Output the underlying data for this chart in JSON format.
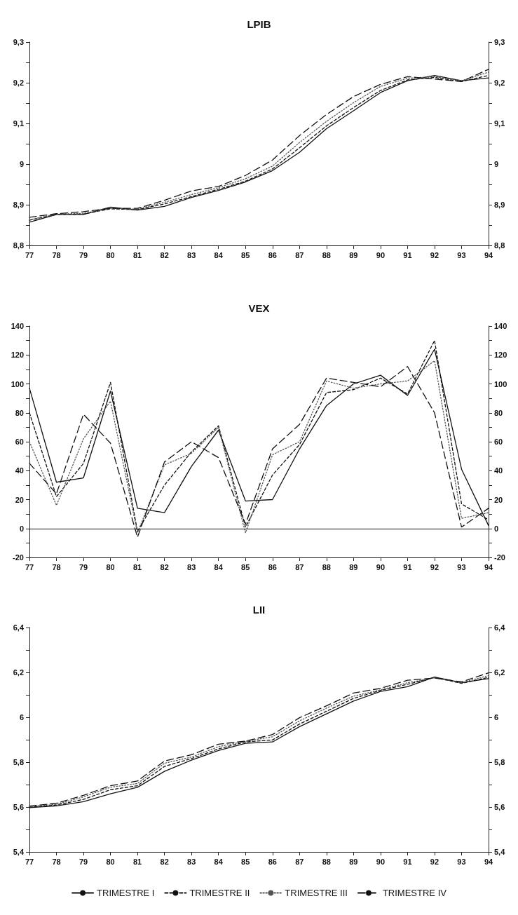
{
  "chart_data": [
    {
      "type": "line",
      "title": "LPIB",
      "categories": [
        "77",
        "78",
        "79",
        "80",
        "81",
        "82",
        "83",
        "84",
        "85",
        "86",
        "87",
        "88",
        "89",
        "90",
        "91",
        "92",
        "93",
        "94"
      ],
      "ylim": [
        8.8,
        9.3
      ],
      "yticks": [
        {
          "value": 8.8,
          "label": "8,8"
        },
        {
          "value": 8.85,
          "label": null
        },
        {
          "value": 8.9,
          "label": "8,9"
        },
        {
          "value": 8.95,
          "label": null
        },
        {
          "value": 9,
          "label": "9"
        },
        {
          "value": 9.05,
          "label": null
        },
        {
          "value": 9.1,
          "label": "9,1"
        },
        {
          "value": 9.15,
          "label": null
        },
        {
          "value": 9.2,
          "label": "9,2"
        },
        {
          "value": 9.25,
          "label": null
        },
        {
          "value": 9.3,
          "label": "9,3"
        }
      ],
      "y2lim": [
        8.8,
        9.3
      ],
      "y2ticks": [
        {
          "value": 8.8,
          "label": "8,8"
        },
        {
          "value": 8.85,
          "label": null
        },
        {
          "value": 8.9,
          "label": "8,9"
        },
        {
          "value": 8.95,
          "label": null
        },
        {
          "value": 9,
          "label": "9"
        },
        {
          "value": 9.05,
          "label": null
        },
        {
          "value": 9.1,
          "label": "9,1"
        },
        {
          "value": 9.15,
          "label": null
        },
        {
          "value": 9.2,
          "label": "9,2"
        },
        {
          "value": 9.25,
          "label": null
        },
        {
          "value": 9.3,
          "label": "9,3"
        }
      ],
      "grid": false,
      "marker": "none",
      "series": [
        {
          "color": "#111111",
          "line_style": "solid",
          "values": [
            8.857,
            8.876,
            8.876,
            8.894,
            8.887,
            8.896,
            8.918,
            8.935,
            8.956,
            8.984,
            9.029,
            9.087,
            9.131,
            9.176,
            9.205,
            9.218,
            9.205,
            9.212
          ]
        },
        {
          "color": "#111111",
          "line_style": "dashed",
          "values": [
            8.862,
            8.876,
            8.877,
            8.89,
            8.888,
            8.902,
            8.92,
            8.938,
            8.958,
            8.988,
            9.04,
            9.094,
            9.139,
            9.181,
            9.207,
            9.213,
            9.203,
            9.218
          ]
        },
        {
          "color": "#555555",
          "line_style": "dotted",
          "values": [
            8.863,
            8.877,
            8.879,
            8.891,
            8.889,
            8.906,
            8.925,
            8.942,
            8.964,
            8.995,
            9.053,
            9.105,
            9.151,
            9.191,
            9.211,
            9.215,
            9.205,
            9.226
          ]
        },
        {
          "color": "#111111",
          "line_style": "dashed",
          "values": [
            8.869,
            8.878,
            8.883,
            8.891,
            8.891,
            8.911,
            8.934,
            8.945,
            8.972,
            9.01,
            9.07,
            9.122,
            9.166,
            9.196,
            9.215,
            9.209,
            9.203,
            9.233
          ]
        }
      ]
    },
    {
      "type": "line",
      "title": "VEX",
      "categories": [
        "77",
        "78",
        "79",
        "80",
        "81",
        "82",
        "83",
        "84",
        "85",
        "86",
        "87",
        "88",
        "89",
        "90",
        "91",
        "92",
        "93",
        "94"
      ],
      "ylim": [
        -20,
        140
      ],
      "yticks": [
        -20,
        {
          "value": -10,
          "label": null
        },
        0,
        {
          "value": 10,
          "label": null
        },
        20,
        {
          "value": 30,
          "label": null
        },
        40,
        {
          "value": 50,
          "label": null
        },
        60,
        {
          "value": 70,
          "label": null
        },
        80,
        {
          "value": 90,
          "label": null
        },
        100,
        {
          "value": 110,
          "label": null
        },
        120,
        {
          "value": 130,
          "label": null
        },
        140
      ],
      "y2lim": [
        -20,
        140
      ],
      "y2ticks": [
        -20,
        {
          "value": -10,
          "label": null
        },
        0,
        {
          "value": 10,
          "label": null
        },
        20,
        {
          "value": 30,
          "label": null
        },
        40,
        {
          "value": 50,
          "label": null
        },
        60,
        {
          "value": 70,
          "label": null
        },
        80,
        {
          "value": 90,
          "label": null
        },
        100,
        {
          "value": 110,
          "label": null
        },
        120,
        {
          "value": 130,
          "label": null
        },
        140
      ],
      "grid": false,
      "marker": "none",
      "ref_lines": [
        {
          "axis": "y",
          "value": 0,
          "color": "#111111",
          "line_style": "solid"
        }
      ],
      "series": [
        {
          "color": "#111111",
          "line_style": "solid",
          "values": [
            97,
            32,
            35,
            95,
            14,
            11,
            43,
            68,
            19,
            20,
            55,
            85,
            100,
            106,
            92,
            124,
            41,
            2
          ]
        },
        {
          "color": "#111111",
          "line_style": "dashed",
          "values": [
            80,
            22,
            45,
            101,
            -2,
            30,
            53,
            71,
            1,
            37,
            58,
            94,
            96,
            104,
            93,
            130,
            17,
            6
          ]
        },
        {
          "color": "#555555",
          "line_style": "dotted",
          "values": [
            60,
            16,
            62,
            88,
            -3,
            44,
            52,
            70,
            -3,
            51,
            60,
            102,
            97,
            100,
            102,
            116,
            7,
            11
          ]
        },
        {
          "color": "#111111",
          "line_style": "dashed",
          "values": [
            45,
            24,
            79,
            59,
            -6,
            46,
            60,
            49,
            3,
            55,
            72,
            104,
            101,
            98,
            112,
            80,
            1,
            14
          ]
        }
      ]
    },
    {
      "type": "line",
      "title": "LII",
      "categories": [
        "77",
        "78",
        "79",
        "80",
        "81",
        "82",
        "83",
        "84",
        "85",
        "86",
        "87",
        "88",
        "89",
        "90",
        "91",
        "92",
        "93",
        "94"
      ],
      "ylim": [
        5.4,
        6.4
      ],
      "yticks": [
        {
          "value": 5.4,
          "label": "5,4"
        },
        {
          "value": 5.5,
          "label": null
        },
        {
          "value": 5.6,
          "label": "5,6"
        },
        {
          "value": 5.7,
          "label": null
        },
        {
          "value": 5.8,
          "label": "5,8"
        },
        {
          "value": 5.9,
          "label": null
        },
        {
          "value": 6,
          "label": "6"
        },
        {
          "value": 6.1,
          "label": null
        },
        {
          "value": 6.2,
          "label": "6,2"
        },
        {
          "value": 6.3,
          "label": null
        },
        {
          "value": 6.4,
          "label": "6,4"
        }
      ],
      "y2lim": [
        5.4,
        6.4
      ],
      "y2ticks": [
        {
          "value": 5.4,
          "label": "5,4"
        },
        {
          "value": 5.5,
          "label": null
        },
        {
          "value": 5.6,
          "label": "5,6"
        },
        {
          "value": 5.7,
          "label": null
        },
        {
          "value": 5.8,
          "label": "5,8"
        },
        {
          "value": 5.9,
          "label": null
        },
        {
          "value": 6,
          "label": "6"
        },
        {
          "value": 6.1,
          "label": null
        },
        {
          "value": 6.2,
          "label": "6,2"
        },
        {
          "value": 6.3,
          "label": null
        },
        {
          "value": 6.4,
          "label": "6,4"
        }
      ],
      "grid": false,
      "marker": "none",
      "legend": "bottom",
      "series": [
        {
          "name": "TRIMESTRE I",
          "color": "#111111",
          "line_style": "solid",
          "values": [
            5.597,
            5.605,
            5.624,
            5.659,
            5.688,
            5.759,
            5.809,
            5.852,
            5.884,
            5.89,
            5.958,
            6.015,
            6.072,
            6.115,
            6.136,
            6.179,
            6.154,
            6.172
          ]
        },
        {
          "name": "TRIMESTRE II",
          "color": "#111111",
          "line_style": "dashed",
          "values": [
            5.599,
            5.609,
            5.634,
            5.677,
            5.695,
            5.781,
            5.816,
            5.859,
            5.89,
            5.899,
            5.97,
            6.027,
            6.084,
            6.12,
            6.147,
            6.178,
            6.151,
            6.178
          ]
        },
        {
          "name": "TRIMESTRE III",
          "color": "#555555",
          "line_style": "dotted",
          "values": [
            5.602,
            5.612,
            5.645,
            5.688,
            5.705,
            5.795,
            5.823,
            5.869,
            5.893,
            5.913,
            5.984,
            6.041,
            6.094,
            6.122,
            6.154,
            6.176,
            6.154,
            6.186
          ]
        },
        {
          "name": "TRIMESTRE IV",
          "color": "#111111",
          "line_style": "dashed",
          "values": [
            5.604,
            5.617,
            5.652,
            5.695,
            5.716,
            5.805,
            5.833,
            5.88,
            5.894,
            5.923,
            5.998,
            6.051,
            6.108,
            6.129,
            6.165,
            6.175,
            6.158,
            6.198
          ]
        }
      ]
    }
  ]
}
